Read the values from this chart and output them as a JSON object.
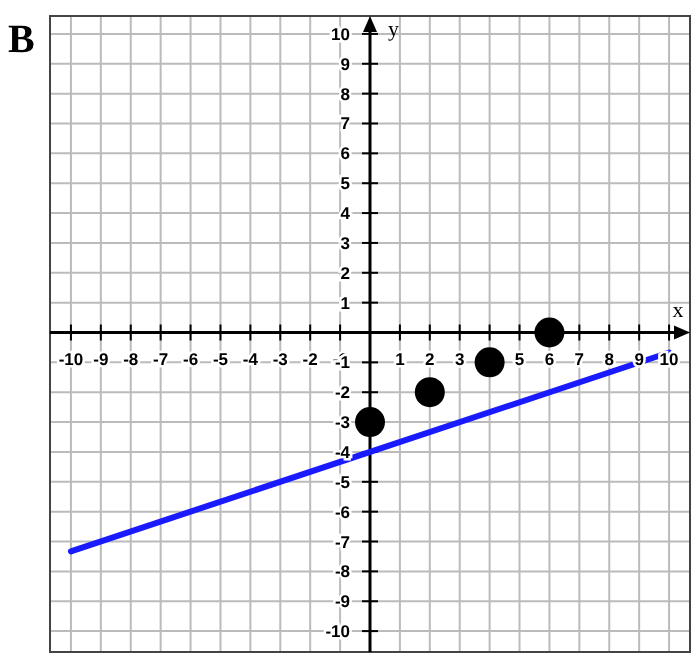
{
  "chart_data": {
    "type": "scatter",
    "title": "B",
    "xlabel": "x",
    "ylabel": "y",
    "xlim": [
      -10.7,
      10.7
    ],
    "ylim": [
      -10.7,
      10.6
    ],
    "xticks": [
      -10,
      -9,
      -8,
      -7,
      -6,
      -5,
      -4,
      -3,
      -2,
      -1,
      1,
      2,
      3,
      {
        "value": 4,
        "label": null
      },
      5,
      6,
      7,
      8,
      9,
      10
    ],
    "yticks": [
      -10,
      -9,
      -8,
      -7,
      -6,
      -5,
      -4,
      -3,
      -2,
      -1,
      1,
      2,
      3,
      4,
      5,
      6,
      7,
      8,
      9,
      10
    ],
    "grid": true,
    "series": [
      {
        "color": "#000000",
        "marker": "circle",
        "x": [
          0,
          2,
          4,
          6
        ],
        "values": [
          -3,
          -2,
          -1,
          0
        ]
      },
      {
        "type": "line",
        "color": "#1a1aff",
        "marker": "none",
        "line_style": "solid",
        "x": [
          -10,
          10
        ],
        "values": [
          -7.33,
          -0.67
        ]
      }
    ]
  }
}
